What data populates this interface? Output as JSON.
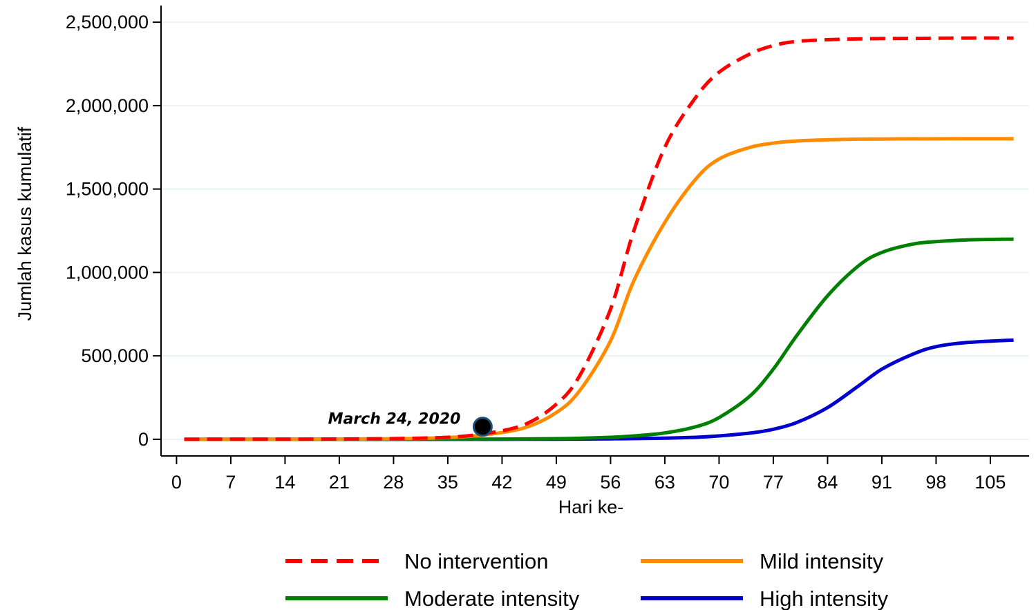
{
  "chart_data": {
    "type": "line",
    "xlabel": "Hari ke-",
    "ylabel": "Jumlah kasus kumulatif",
    "xlim": [
      -2,
      110
    ],
    "ylim": [
      -100000,
      2600000
    ],
    "x_ticks": [
      0,
      7,
      14,
      21,
      28,
      35,
      42,
      49,
      56,
      63,
      70,
      77,
      84,
      91,
      98,
      105
    ],
    "y_ticks": [
      {
        "value": 0,
        "label": "0"
      },
      {
        "value": 500000,
        "label": "500,000"
      },
      {
        "value": 1000000,
        "label": "1,000,000"
      },
      {
        "value": 1500000,
        "label": "1,500,000"
      },
      {
        "value": 2000000,
        "label": "2,000,000"
      },
      {
        "value": 2500000,
        "label": "2,500,000"
      }
    ],
    "grid": true,
    "legend_position": "bottom",
    "x": [
      1,
      7,
      14,
      21,
      28,
      35,
      40,
      45,
      49,
      52,
      56,
      59,
      63,
      67,
      70,
      74,
      77,
      80,
      84,
      88,
      91,
      95,
      98,
      102,
      108
    ],
    "series": [
      {
        "name": "No intervention",
        "color": "#ff0000",
        "dash": true,
        "values": [
          0,
          100,
          400,
          1500,
          4000,
          12000,
          35000,
          90000,
          210000,
          380000,
          780000,
          1250000,
          1750000,
          2050000,
          2200000,
          2310000,
          2360000,
          2385000,
          2395000,
          2400000,
          2402000,
          2403000,
          2404000,
          2405000,
          2405000
        ]
      },
      {
        "name": "Mild intensity",
        "color": "#ff8c00",
        "dash": false,
        "values": [
          0,
          80,
          300,
          1100,
          3200,
          10000,
          28000,
          70000,
          160000,
          290000,
          590000,
          950000,
          1300000,
          1560000,
          1680000,
          1750000,
          1775000,
          1788000,
          1795000,
          1799000,
          1800000,
          1801000,
          1801000,
          1802000,
          1802000
        ]
      },
      {
        "name": "Moderate intensity",
        "color": "#008000",
        "dash": false,
        "values": [
          0,
          0,
          0,
          0,
          0,
          300,
          800,
          1800,
          3500,
          6000,
          12000,
          20000,
          38000,
          75000,
          130000,
          260000,
          420000,
          620000,
          860000,
          1040000,
          1120000,
          1170000,
          1185000,
          1195000,
          1200000
        ]
      },
      {
        "name": "High intensity",
        "color": "#0000cc",
        "dash": false,
        "values": [
          0,
          0,
          0,
          0,
          0,
          0,
          0,
          300,
          700,
          1200,
          2500,
          4000,
          7000,
          12000,
          20000,
          37000,
          60000,
          100000,
          190000,
          320000,
          420000,
          510000,
          555000,
          580000,
          595000
        ]
      }
    ],
    "annotations": [
      {
        "text": "March 24, 2020",
        "x": 39.5,
        "y": 75000
      }
    ]
  }
}
